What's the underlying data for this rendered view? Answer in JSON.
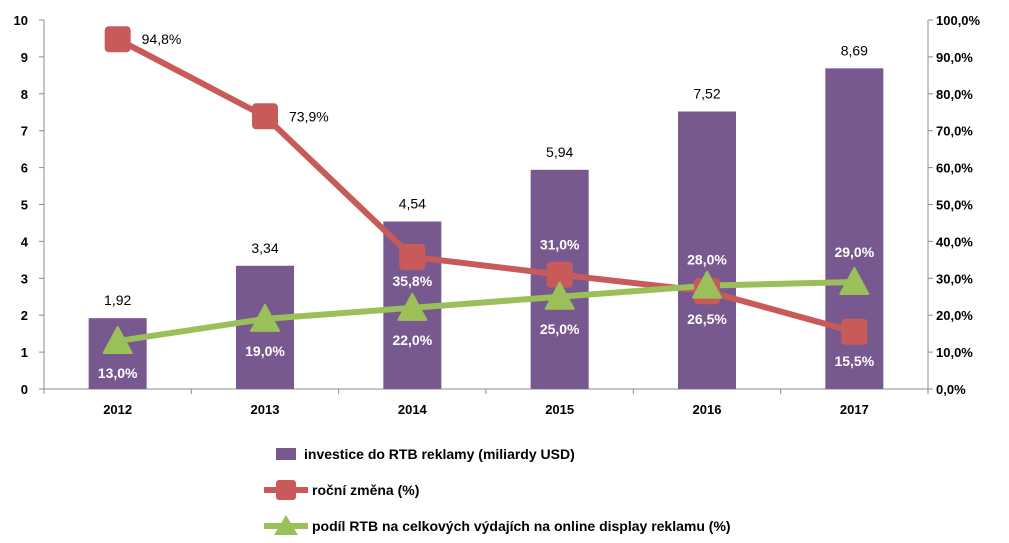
{
  "chart_data": {
    "type": "bar",
    "categories": [
      "2012",
      "2013",
      "2014",
      "2015",
      "2016",
      "2017"
    ],
    "y_left": {
      "min": 0,
      "max": 10,
      "ticks": [
        "0",
        "1",
        "2",
        "3",
        "4",
        "5",
        "6",
        "7",
        "8",
        "9",
        "10"
      ]
    },
    "y_right": {
      "min": 0,
      "max": 100,
      "ticks": [
        "0,0%",
        "10,0%",
        "20,0%",
        "30,0%",
        "40,0%",
        "50,0%",
        "60,0%",
        "70,0%",
        "80,0%",
        "90,0%",
        "100,0%"
      ]
    },
    "grid": false,
    "legend_position": "bottom",
    "series": [
      {
        "name": "investice do RTB reklamy (miliardy USD)",
        "type": "bar",
        "axis": "left",
        "color": "#77598f",
        "values": [
          1.92,
          3.34,
          4.54,
          5.94,
          7.52,
          8.69
        ],
        "labels": [
          "1,92",
          "3,34",
          "4,54",
          "5,94",
          "7,52",
          "8,69"
        ]
      },
      {
        "name": "roční změna (%)",
        "type": "line",
        "axis": "right",
        "color": "#c85a5a",
        "marker": "square",
        "values": [
          94.8,
          73.9,
          35.8,
          31.0,
          26.5,
          15.5
        ],
        "labels": [
          "94,8%",
          "73,9%",
          "35,8%",
          "31,0%",
          "26,5%",
          "15,5%"
        ]
      },
      {
        "name": "podíl RTB na celkových výdajích na online display reklamu (%)",
        "type": "line",
        "axis": "right",
        "color": "#9bc059",
        "marker": "triangle",
        "values": [
          13.0,
          19.0,
          22.0,
          25.0,
          28.0,
          29.0
        ],
        "labels": [
          "13,0%",
          "19,0%",
          "22,0%",
          "25,0%",
          "28,0%",
          "29,0%"
        ]
      }
    ]
  }
}
